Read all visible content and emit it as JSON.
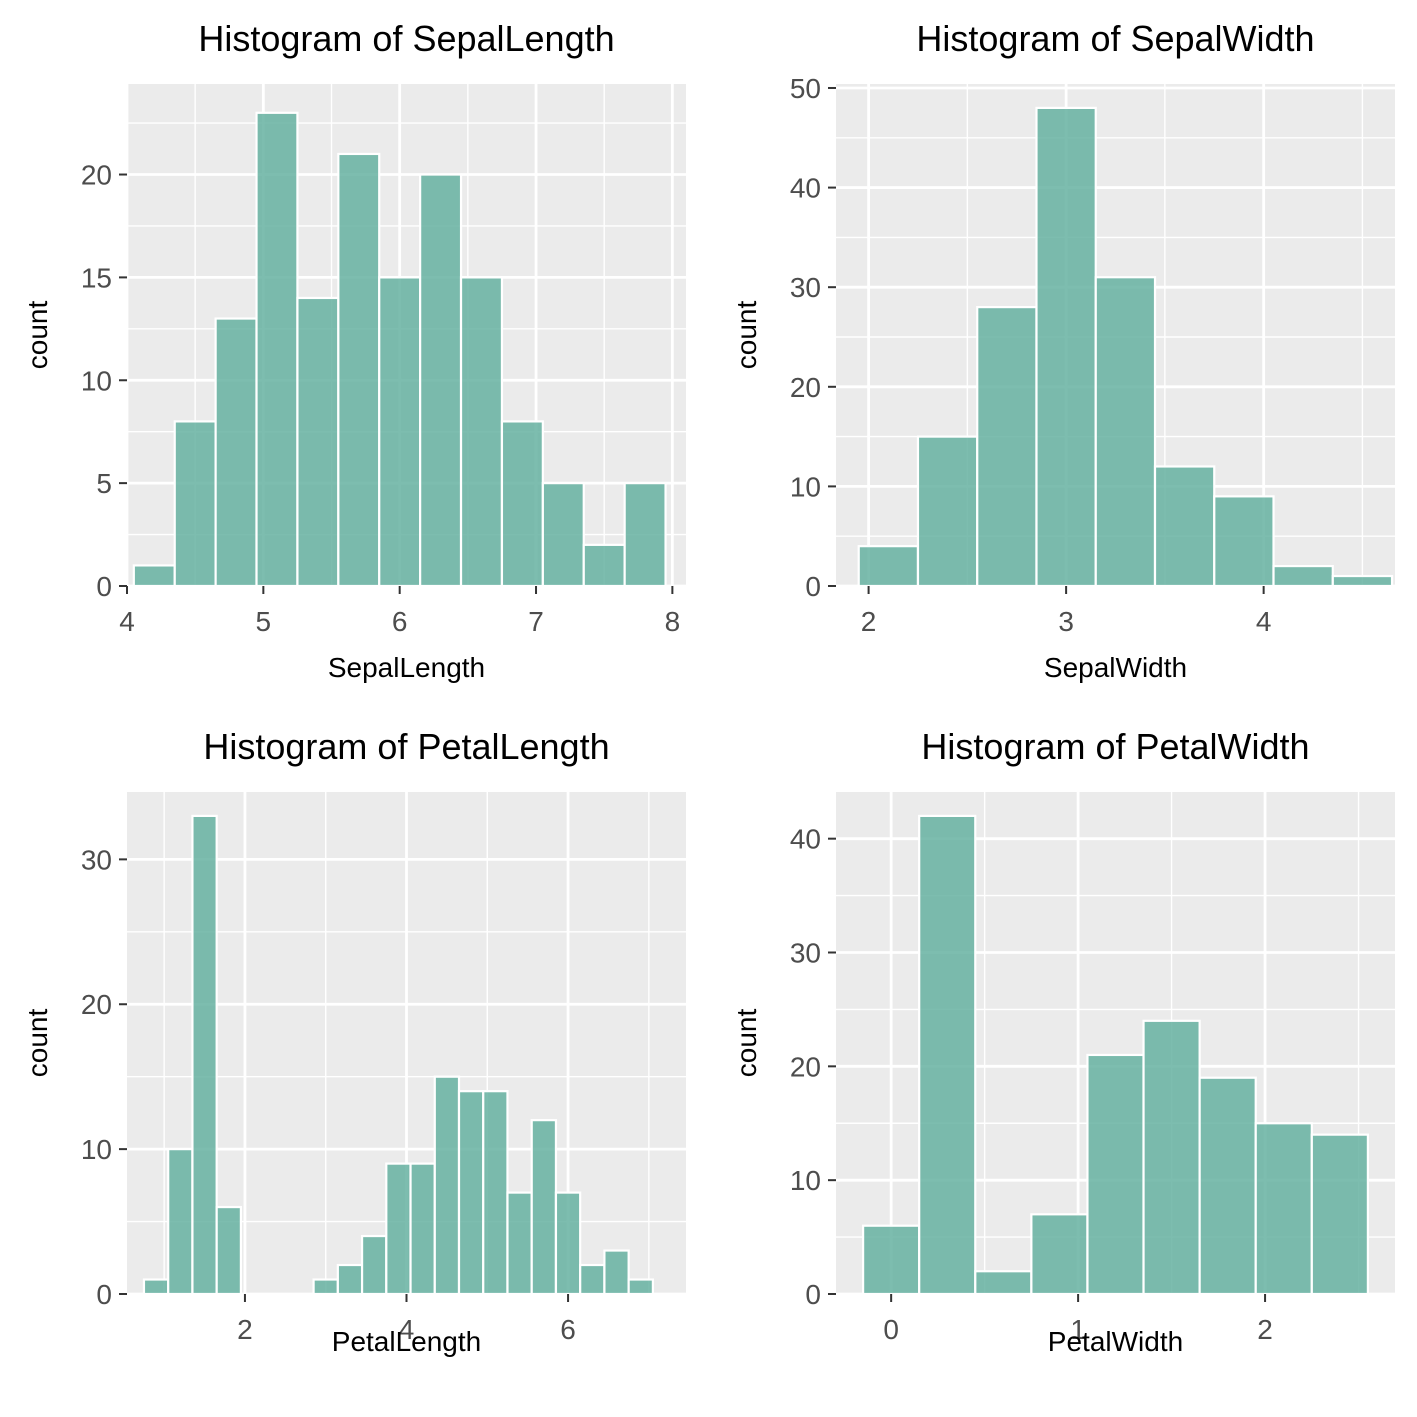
{
  "style": {
    "panel_bg": "#ebebeb",
    "grid_color": "#ffffff",
    "bar_fill": "#66b2a1",
    "bar_fill_opacity": 0.85,
    "tick_color": "#333333",
    "tick_label_color": "#4d4d4d"
  },
  "chart_data": [
    {
      "type": "bar",
      "subtype": "histogram",
      "title": "Histogram of SepalLength",
      "xlabel": "SepalLength",
      "ylabel": "count",
      "xlim": [
        4.0,
        8.1
      ],
      "ylim": [
        0,
        24.4
      ],
      "xticks": [
        4,
        5,
        6,
        7,
        8
      ],
      "yticks": [
        0,
        5,
        10,
        15,
        20
      ],
      "bin_width": 0.3,
      "bins": [
        {
          "x": 4.2,
          "count": 1
        },
        {
          "x": 4.5,
          "count": 8
        },
        {
          "x": 4.8,
          "count": 13
        },
        {
          "x": 5.1,
          "count": 23
        },
        {
          "x": 5.4,
          "count": 14
        },
        {
          "x": 5.7,
          "count": 21
        },
        {
          "x": 6.0,
          "count": 15
        },
        {
          "x": 6.3,
          "count": 20
        },
        {
          "x": 6.6,
          "count": 15
        },
        {
          "x": 6.9,
          "count": 8
        },
        {
          "x": 7.2,
          "count": 5
        },
        {
          "x": 7.5,
          "count": 2
        },
        {
          "x": 7.8,
          "count": 5
        }
      ]
    },
    {
      "type": "bar",
      "subtype": "histogram",
      "title": "Histogram of SepalWidth",
      "xlabel": "SepalWidth",
      "ylabel": "count",
      "xlim": [
        1.835,
        4.665
      ],
      "ylim": [
        0,
        50.4
      ],
      "xticks": [
        2,
        3,
        4
      ],
      "yticks": [
        0,
        10,
        20,
        30,
        40,
        50
      ],
      "bin_width": 0.3,
      "bins": [
        {
          "x": 2.1,
          "count": 4
        },
        {
          "x": 2.4,
          "count": 15
        },
        {
          "x": 2.7,
          "count": 28
        },
        {
          "x": 3.0,
          "count": 48
        },
        {
          "x": 3.3,
          "count": 31
        },
        {
          "x": 3.6,
          "count": 12
        },
        {
          "x": 3.9,
          "count": 9
        },
        {
          "x": 4.2,
          "count": 2
        },
        {
          "x": 4.5,
          "count": 1
        }
      ]
    },
    {
      "type": "bar",
      "subtype": "histogram",
      "title": "Histogram of PetalLength",
      "xlabel": "PetalLength",
      "ylabel": "count",
      "xlim": [
        0.54,
        7.46
      ],
      "ylim": [
        0,
        34.65
      ],
      "xticks": [
        2,
        4,
        6
      ],
      "yticks": [
        0,
        10,
        20,
        30
      ],
      "bin_width": 0.3,
      "bins": [
        {
          "x": 0.9,
          "count": 1
        },
        {
          "x": 1.2,
          "count": 10
        },
        {
          "x": 1.5,
          "count": 33
        },
        {
          "x": 1.8,
          "count": 6
        },
        {
          "x": 2.1,
          "count": 0
        },
        {
          "x": 2.4,
          "count": 0
        },
        {
          "x": 2.7,
          "count": 0
        },
        {
          "x": 3.0,
          "count": 1
        },
        {
          "x": 3.3,
          "count": 2
        },
        {
          "x": 3.6,
          "count": 4
        },
        {
          "x": 3.9,
          "count": 9
        },
        {
          "x": 4.2,
          "count": 9
        },
        {
          "x": 4.5,
          "count": 15
        },
        {
          "x": 4.8,
          "count": 14
        },
        {
          "x": 5.1,
          "count": 14
        },
        {
          "x": 5.4,
          "count": 7
        },
        {
          "x": 5.7,
          "count": 12
        },
        {
          "x": 6.0,
          "count": 7
        },
        {
          "x": 6.3,
          "count": 2
        },
        {
          "x": 6.6,
          "count": 3
        },
        {
          "x": 6.9,
          "count": 1
        }
      ]
    },
    {
      "type": "bar",
      "subtype": "histogram",
      "title": "Histogram of PetalWidth",
      "xlabel": "PetalWidth",
      "ylabel": "count",
      "xlim": [
        -0.295,
        2.695
      ],
      "ylim": [
        0,
        44.1
      ],
      "xticks": [
        0,
        1,
        2
      ],
      "yticks": [
        0,
        10,
        20,
        30,
        40
      ],
      "bin_width": 0.3,
      "bins": [
        {
          "x": 0.0,
          "count": 6
        },
        {
          "x": 0.3,
          "count": 42
        },
        {
          "x": 0.6,
          "count": 2
        },
        {
          "x": 0.9,
          "count": 7
        },
        {
          "x": 1.2,
          "count": 21
        },
        {
          "x": 1.5,
          "count": 24
        },
        {
          "x": 1.8,
          "count": 19
        },
        {
          "x": 2.1,
          "count": 15
        },
        {
          "x": 2.4,
          "count": 14
        }
      ]
    }
  ]
}
